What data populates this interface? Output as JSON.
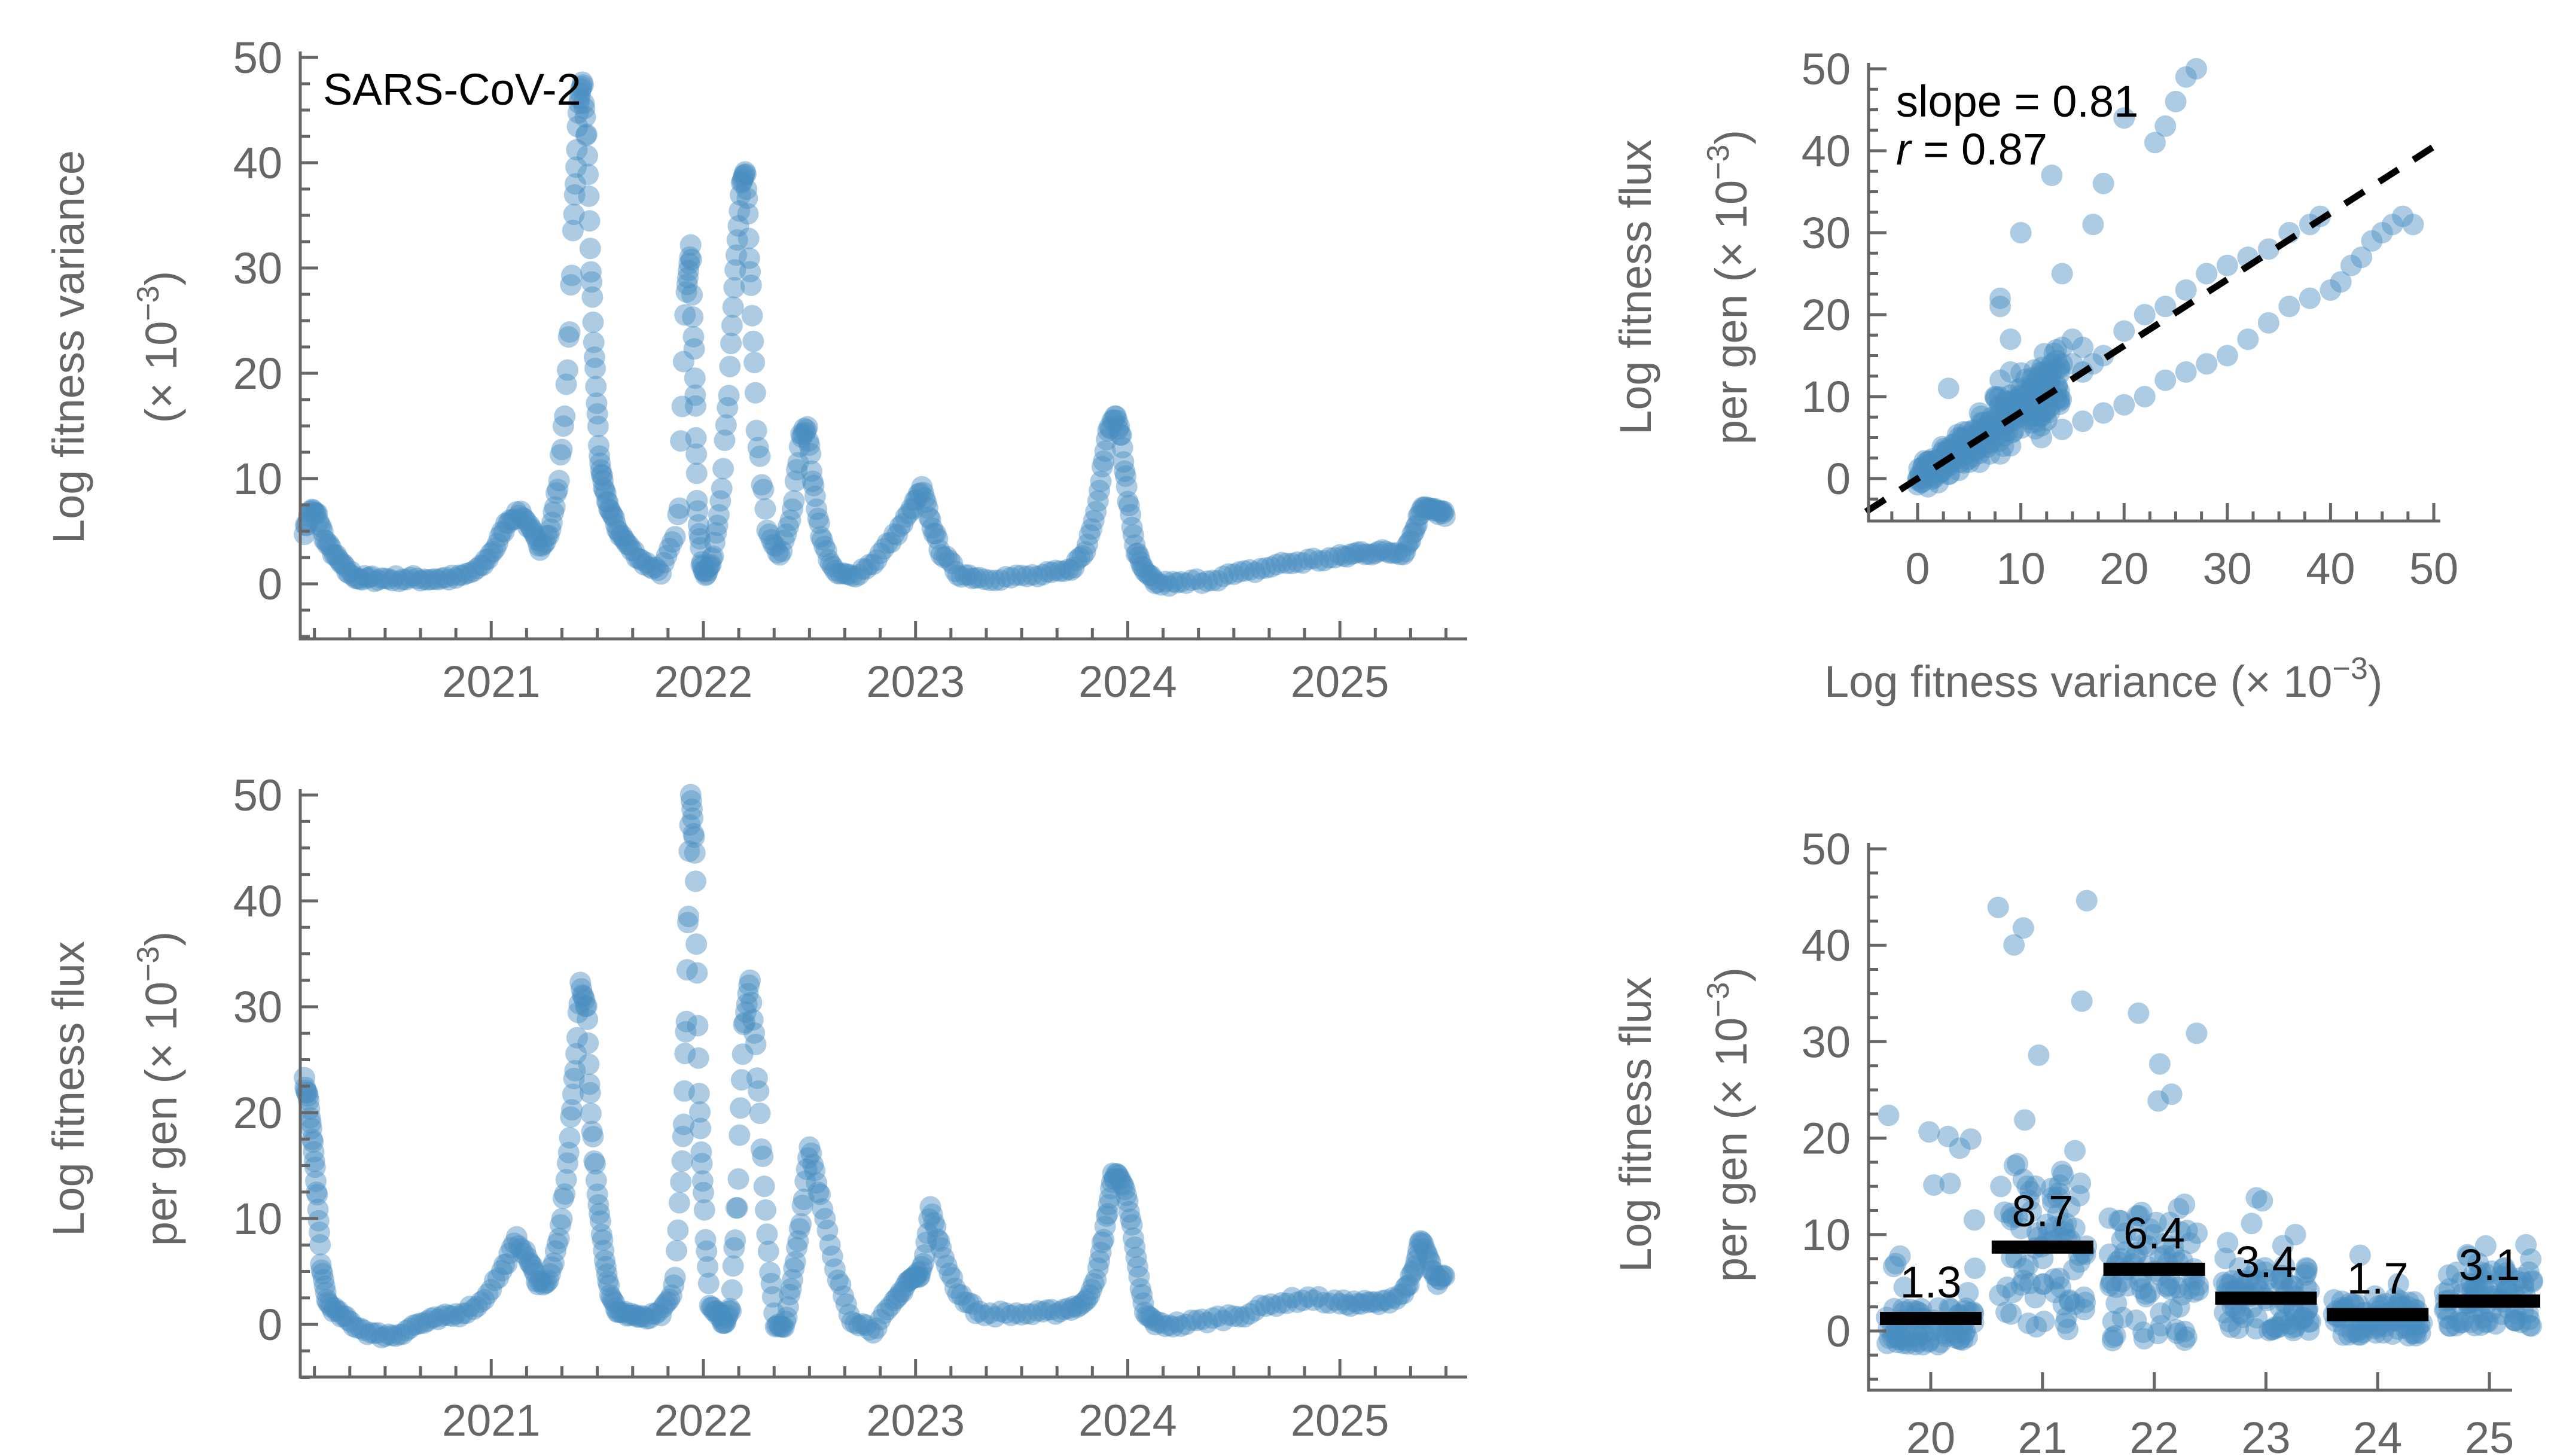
{
  "figure_label": "SARS-CoV-2",
  "colors": {
    "points": "#4a8fc2",
    "axes": "#666666",
    "annotation": "#000000"
  },
  "chart_data": [
    {
      "id": "variance_timeseries",
      "type": "scatter",
      "title": "",
      "annotation": "SARS-CoV-2",
      "xlabel": "",
      "ylabel_line1": "Log fitness variance",
      "ylabel_line2": "(× 10",
      "ylabel_exp": "−3",
      "ylabel_close": ")",
      "xlim": [
        2020.1,
        2025.6
      ],
      "ylim": [
        -5,
        50
      ],
      "xticks": [
        2021,
        2022,
        2023,
        2024,
        2025
      ],
      "xtick_labels": [
        "2021",
        "2022",
        "2023",
        "2024",
        "2025"
      ],
      "yticks": [
        0,
        10,
        20,
        30,
        40,
        50
      ],
      "ytick_labels": [
        "0",
        "10",
        "20",
        "30",
        "40",
        "50"
      ],
      "grid": false,
      "series": [
        {
          "name": "variance",
          "x": [
            2020.12,
            2020.15,
            2020.18,
            2020.22,
            2020.27,
            2020.32,
            2020.38,
            2020.45,
            2020.55,
            2020.65,
            2020.75,
            2020.85,
            2020.95,
            2021.02,
            2021.08,
            2021.14,
            2021.19,
            2021.23,
            2021.28,
            2021.32,
            2021.36,
            2021.39,
            2021.41,
            2021.43,
            2021.45,
            2021.47,
            2021.49,
            2021.51,
            2021.53,
            2021.56,
            2021.6,
            2021.65,
            2021.72,
            2021.8,
            2021.88,
            2021.92,
            2021.94,
            2021.96,
            2021.97,
            2021.99,
            2022.01,
            2022.04,
            2022.08,
            2022.12,
            2022.15,
            2022.18,
            2022.2,
            2022.22,
            2022.25,
            2022.3,
            2022.36,
            2022.42,
            2022.46,
            2022.49,
            2022.52,
            2022.56,
            2022.62,
            2022.7,
            2022.8,
            2022.9,
            2022.98,
            2023.03,
            2023.07,
            2023.12,
            2023.2,
            2023.3,
            2023.45,
            2023.6,
            2023.72,
            2023.8,
            2023.86,
            2023.9,
            2023.94,
            2023.97,
            2024.0,
            2024.04,
            2024.08,
            2024.14,
            2024.25,
            2024.4,
            2024.55,
            2024.7,
            2024.85,
            2025.0,
            2025.1,
            2025.2,
            2025.3,
            2025.35,
            2025.39,
            2025.43,
            2025.47,
            2025.5
          ],
          "y": [
            5,
            7,
            6.5,
            4,
            2.5,
            1.2,
            0.5,
            0.5,
            0.5,
            0.5,
            0.5,
            0.6,
            1.5,
            3.5,
            6,
            6.8,
            5,
            3.5,
            5,
            10,
            20,
            35,
            45,
            48,
            42,
            30,
            20,
            12,
            9,
            7,
            5,
            3.5,
            2,
            1.2,
            5,
            28,
            32,
            20,
            8,
            2,
            1,
            2,
            8,
            18,
            30,
            38,
            39,
            30,
            15,
            5,
            2.5,
            7,
            14,
            15,
            9,
            4,
            1,
            0.7,
            2,
            4.5,
            7,
            9,
            6,
            3,
            1,
            0.6,
            0.6,
            0.8,
            1.2,
            3,
            8,
            14,
            16,
            14,
            8,
            3,
            1,
            0,
            0,
            0.5,
            1,
            1.8,
            2.2,
            2.5,
            3,
            3,
            3,
            5,
            7.5,
            7,
            6.8,
            6.5
          ]
        }
      ]
    },
    {
      "id": "flux_vs_variance",
      "type": "scatter",
      "title": "",
      "xlabel": "Log fitness variance (× 10",
      "xlabel_exp": "−3",
      "xlabel_close": ")",
      "ylabel_line1": "Log fitness flux",
      "ylabel_line2": "per gen (× 10",
      "ylabel_exp": "−3",
      "ylabel_close": ")",
      "xlim": [
        -5,
        50
      ],
      "ylim": [
        -4,
        50
      ],
      "xticks": [
        0,
        10,
        20,
        30,
        40,
        50
      ],
      "xtick_labels": [
        "0",
        "10",
        "20",
        "30",
        "40",
        "50"
      ],
      "yticks": [
        0,
        10,
        20,
        30,
        40,
        50
      ],
      "ytick_labels": [
        "0",
        "10",
        "20",
        "30",
        "40",
        "50"
      ],
      "grid": false,
      "annotations": [
        {
          "text": "slope = 0.81",
          "italic_prefix": ""
        },
        {
          "text": " = 0.87",
          "italic_prefix": "r"
        }
      ],
      "fit": {
        "slope": 0.81,
        "r": 0.87,
        "intercept": 0,
        "style": "dashed"
      },
      "series": [
        {
          "name": "points",
          "x": [
            0.5,
            1,
            1.5,
            2,
            2.5,
            3,
            3.5,
            4,
            4.5,
            5,
            5.5,
            6,
            6.5,
            7,
            7.5,
            8,
            8.5,
            9,
            9.5,
            10,
            11,
            12,
            13,
            14,
            15,
            16,
            1,
            2,
            3,
            4,
            5,
            6,
            7,
            8,
            9,
            2.5,
            4,
            6,
            7.5,
            8,
            8,
            9,
            10,
            12,
            13,
            14,
            15,
            16,
            17,
            18,
            20,
            22,
            24,
            26,
            28,
            30,
            32,
            34,
            36,
            38,
            39,
            12,
            14,
            16,
            18,
            20,
            22,
            24,
            26,
            28,
            30,
            32,
            34,
            36,
            38,
            40,
            41,
            42,
            43,
            44,
            45,
            46,
            47,
            48,
            8,
            8,
            9,
            3,
            10,
            14,
            17,
            18,
            13,
            20,
            23,
            24,
            25,
            26,
            27
          ],
          "y": [
            0,
            1,
            1.5,
            2,
            2.5,
            2,
            3,
            4,
            3.5,
            5,
            4.5,
            6,
            5.5,
            7,
            6.5,
            8,
            7,
            9,
            8,
            10,
            11,
            12,
            13,
            14,
            14,
            13,
            -1,
            -0.5,
            0.5,
            1,
            2,
            2,
            3,
            3,
            4,
            2,
            5,
            8,
            10,
            9,
            12,
            13,
            11,
            12,
            14,
            16,
            17,
            16,
            14,
            15,
            18,
            20,
            21,
            23,
            25,
            26,
            27,
            28,
            30,
            31,
            32,
            5,
            6,
            7,
            8,
            9,
            10,
            12,
            13,
            14,
            15,
            17,
            19,
            21,
            22,
            23,
            24,
            26,
            27,
            29,
            30,
            31,
            32,
            31,
            22,
            21,
            17,
            11,
            30,
            25,
            31,
            36,
            37,
            44,
            41,
            43,
            46,
            49,
            50
          ]
        }
      ]
    },
    {
      "id": "flux_timeseries",
      "type": "scatter",
      "title": "",
      "xlabel": "",
      "ylabel_line1": "Log fitness flux",
      "ylabel_line2": "per gen (× 10",
      "ylabel_exp": "−3",
      "ylabel_close": ")",
      "xlim": [
        2020.1,
        2025.6
      ],
      "ylim": [
        -5,
        50
      ],
      "xticks": [
        2021,
        2022,
        2023,
        2024,
        2025
      ],
      "xtick_labels": [
        "2021",
        "2022",
        "2023",
        "2024",
        "2025"
      ],
      "yticks": [
        0,
        10,
        20,
        30,
        40,
        50
      ],
      "ytick_labels": [
        "0",
        "10",
        "20",
        "30",
        "40",
        "50"
      ],
      "grid": false,
      "series": [
        {
          "name": "flux",
          "x": [
            2020.12,
            2020.14,
            2020.16,
            2020.18,
            2020.2,
            2020.23,
            2020.28,
            2020.35,
            2020.45,
            2020.55,
            2020.65,
            2020.75,
            2020.85,
            2020.95,
            2021.05,
            2021.12,
            2021.18,
            2021.22,
            2021.27,
            2021.32,
            2021.36,
            2021.39,
            2021.42,
            2021.45,
            2021.47,
            2021.5,
            2021.53,
            2021.56,
            2021.6,
            2021.66,
            2021.72,
            2021.8,
            2021.86,
            2021.9,
            2021.92,
            2021.94,
            2021.96,
            2021.98,
            2022.0,
            2022.03,
            2022.07,
            2022.1,
            2022.13,
            2022.16,
            2022.19,
            2022.22,
            2022.26,
            2022.3,
            2022.34,
            2022.38,
            2022.42,
            2022.46,
            2022.5,
            2022.55,
            2022.62,
            2022.7,
            2022.8,
            2022.9,
            2022.96,
            2023.0,
            2023.03,
            2023.07,
            2023.12,
            2023.2,
            2023.3,
            2023.45,
            2023.6,
            2023.72,
            2023.8,
            2023.86,
            2023.9,
            2023.93,
            2023.96,
            2024.0,
            2024.04,
            2024.08,
            2024.14,
            2024.25,
            2024.4,
            2024.55,
            2024.7,
            2024.85,
            2025.0,
            2025.1,
            2025.2,
            2025.3,
            2025.35,
            2025.38,
            2025.42,
            2025.46,
            2025.5
          ],
          "y": [
            23,
            21,
            17,
            12,
            5,
            2,
            1,
            0,
            -1,
            -1,
            0,
            0.5,
            1,
            2,
            5,
            8,
            6,
            4,
            4,
            8,
            15,
            23,
            32,
            30,
            20,
            12,
            7,
            3,
            1,
            1,
            0.5,
            1,
            3,
            15,
            30,
            50,
            45,
            22,
            12,
            2,
            1,
            0,
            2,
            12,
            28,
            33,
            22,
            8,
            0,
            -0.5,
            4,
            10,
            17,
            12,
            5,
            0.5,
            -0.5,
            2,
            4,
            4.5,
            5,
            11,
            7,
            3,
            1,
            1,
            1,
            1.5,
            2,
            5,
            10,
            14,
            14,
            12,
            6,
            1,
            0,
            0,
            0.5,
            1,
            2,
            2.5,
            2,
            2,
            2,
            3,
            5,
            8,
            6,
            4,
            5
          ]
        }
      ]
    },
    {
      "id": "flux_by_year",
      "type": "scatter",
      "title": "",
      "xlabel": "",
      "ylabel_line1": "Log fitness flux",
      "ylabel_line2": "per gen (× 10",
      "ylabel_exp": "−3",
      "ylabel_close": ")",
      "ylim": [
        -5,
        50
      ],
      "categories": [
        "20",
        "21",
        "22",
        "23",
        "24",
        "25"
      ],
      "yticks": [
        0,
        10,
        20,
        30,
        40,
        50
      ],
      "ytick_labels": [
        "0",
        "10",
        "20",
        "30",
        "40",
        "50"
      ],
      "grid": false,
      "means": [
        1.3,
        8.7,
        6.4,
        3.4,
        1.7,
        3.1
      ],
      "mean_labels": [
        "1.3",
        "8.7",
        "6.4",
        "3.4",
        "1.7",
        "3.1"
      ],
      "max_values": [
        23.5,
        50,
        33,
        14.5,
        12,
        9
      ],
      "min_values": [
        -1.5,
        0,
        -1,
        0,
        -0.5,
        0.5
      ]
    }
  ]
}
